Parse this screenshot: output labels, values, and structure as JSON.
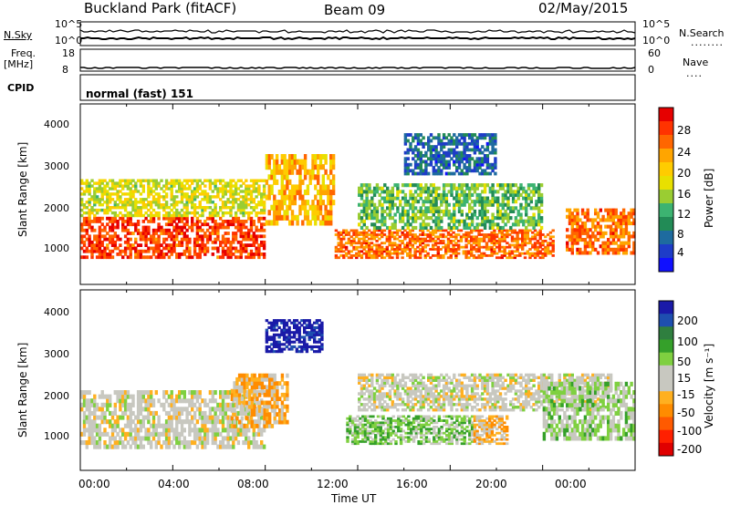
{
  "header": {
    "station": "Buckland Park (fitACF)",
    "beam": "Beam 09",
    "date": "02/May/2015"
  },
  "strip": {
    "nsky_label": "N.Sky",
    "nsearch_label": "N.Search",
    "nsearch_dots": "........",
    "top_left_ticks": [
      "10^5",
      "10^0"
    ],
    "top_right_ticks": [
      "10^5",
      "10^0"
    ],
    "freq_label_1": "Freq.",
    "freq_label_2": "[MHz]",
    "freq_ticks": [
      "18",
      "8"
    ],
    "nave_label": "Nave",
    "nave_dots": "....",
    "nave_ticks": [
      "60",
      "0"
    ],
    "cpid_label": "CPID",
    "cpid_value": "normal (fast) 151"
  },
  "axes": {
    "ylabel": "Slant Range [km]",
    "xlabel": "Time UT",
    "yticks": [
      "4000",
      "3000",
      "2000",
      "1000"
    ],
    "xticks": [
      "00:00",
      "04:00",
      "08:00",
      "12:00",
      "16:00",
      "20:00",
      "00:00"
    ]
  },
  "colorbars": {
    "power": {
      "label": "Power [dB]",
      "ticks": [
        "28",
        "24",
        "20",
        "16",
        "12",
        "8",
        "4"
      ],
      "colors": [
        "#e60000",
        "#ff3300",
        "#ff6600",
        "#ffa500",
        "#ffcc00",
        "#e8e000",
        "#9acd32",
        "#3cb371",
        "#228b56",
        "#1e6b9f",
        "#1e3cc8",
        "#1010ff"
      ]
    },
    "velocity": {
      "label": "Velocity [m s⁻¹]",
      "ticks": [
        "200",
        "100",
        "50",
        "15",
        "-15",
        "-50",
        "-100",
        "-200"
      ],
      "colors": [
        "#1a1aa8",
        "#1e4fb0",
        "#2f7f3f",
        "#35a02a",
        "#7fd040",
        "#c8c8c0",
        "#c8c8c0",
        "#ffb020",
        "#ff8c00",
        "#ff5a00",
        "#ff2000",
        "#e00000"
      ]
    }
  },
  "chart_data": [
    {
      "type": "heatmap",
      "title": "Power",
      "xlabel": "Time UT",
      "ylabel": "Slant Range [km]",
      "xlim": [
        "00:00",
        "24:00"
      ],
      "ylim": [
        180,
        4500
      ],
      "zlabel": "Power [dB]",
      "zlim": [
        0,
        30
      ],
      "regions": [
        {
          "t": [
            0,
            8
          ],
          "range": [
            800,
            1800
          ],
          "power": 26
        },
        {
          "t": [
            0,
            8
          ],
          "range": [
            1800,
            2700
          ],
          "power": 16
        },
        {
          "t": [
            8,
            11
          ],
          "range": [
            1600,
            3300
          ],
          "power": 20
        },
        {
          "t": [
            11,
            20.5
          ],
          "range": [
            800,
            1500
          ],
          "power": 24
        },
        {
          "t": [
            12,
            20
          ],
          "range": [
            1500,
            2600
          ],
          "power": 12
        },
        {
          "t": [
            14,
            18
          ],
          "range": [
            2800,
            3800
          ],
          "power": 6
        },
        {
          "t": [
            21,
            24
          ],
          "range": [
            900,
            2000
          ],
          "power": 24
        }
      ]
    },
    {
      "type": "heatmap",
      "title": "Velocity",
      "xlabel": "Time UT",
      "ylabel": "Slant Range [km]",
      "xlim": [
        "00:00",
        "24:00"
      ],
      "ylim": [
        180,
        4500
      ],
      "zlabel": "Velocity [m s⁻¹]",
      "zlim": [
        -200,
        200
      ],
      "regions": [
        {
          "t": [
            0,
            8
          ],
          "range": [
            700,
            2100
          ],
          "velocity": 0
        },
        {
          "t": [
            6.5,
            9
          ],
          "range": [
            1200,
            2500
          ],
          "velocity": -50
        },
        {
          "t": [
            8,
            10.5
          ],
          "range": [
            3000,
            3800
          ],
          "velocity": 200
        },
        {
          "t": [
            11.5,
            17
          ],
          "range": [
            800,
            1500
          ],
          "velocity": 50
        },
        {
          "t": [
            17,
            18.5
          ],
          "range": [
            800,
            1500
          ],
          "velocity": -50
        },
        {
          "t": [
            12,
            23
          ],
          "range": [
            1600,
            2500
          ],
          "velocity": 0
        },
        {
          "t": [
            20,
            24
          ],
          "range": [
            900,
            2300
          ],
          "velocity": 30
        }
      ]
    }
  ]
}
